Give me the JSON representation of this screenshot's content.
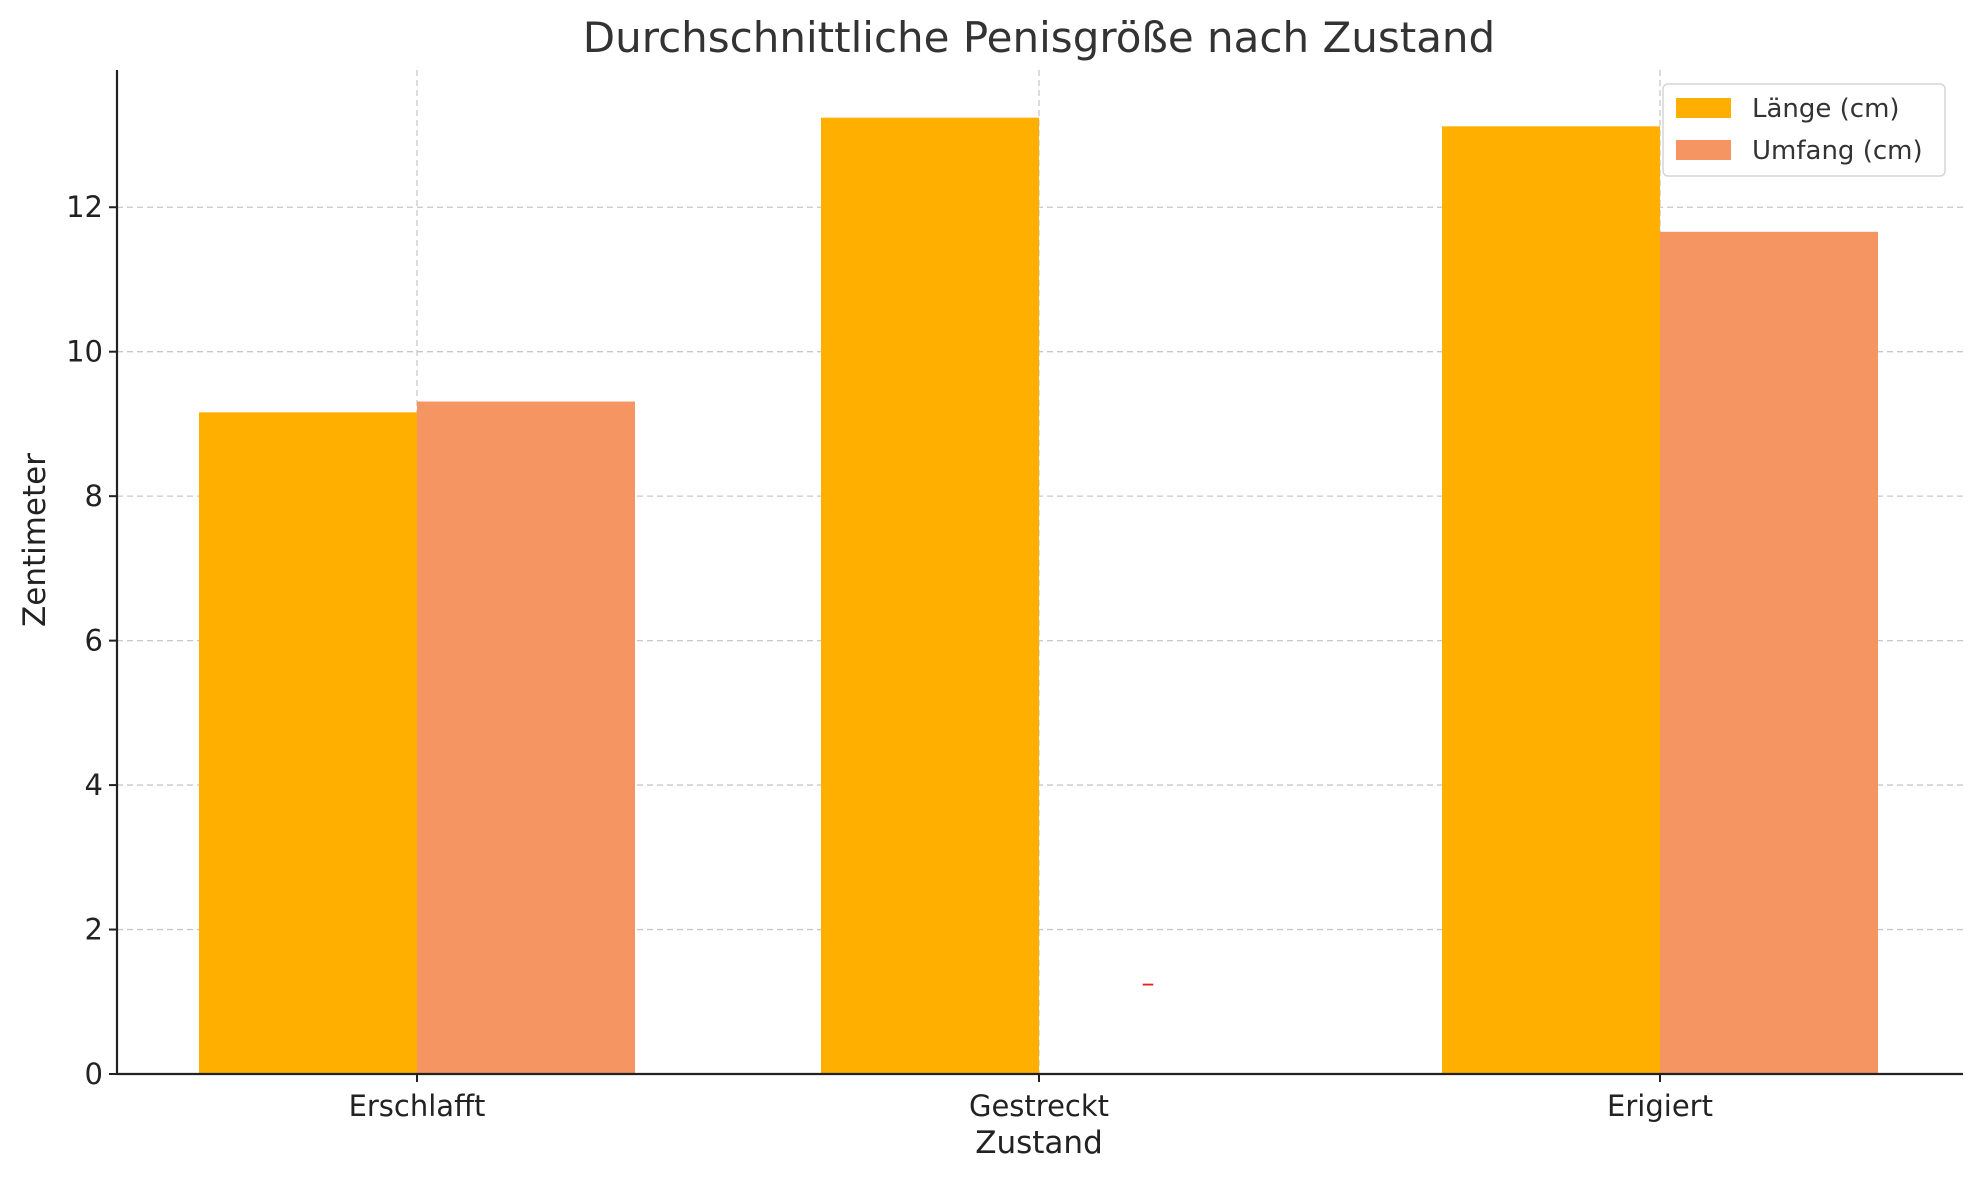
{
  "chart_data": {
    "type": "bar",
    "title": "Durchschnittliche Penisgröße nach Zustand",
    "xlabel": "Zustand",
    "ylabel": "Zentimeter",
    "categories": [
      "Erschlafft",
      "Gestreckt",
      "Erigiert"
    ],
    "series": [
      {
        "name": "Länge (cm)",
        "color": "#FFAF00",
        "values": [
          9.16,
          13.24,
          13.12
        ]
      },
      {
        "name": "Umfang (cm)",
        "color": "#F59562",
        "values": [
          9.31,
          null,
          11.66
        ]
      }
    ],
    "ylim": [
      0,
      13.9
    ],
    "yticks": [
      0,
      2,
      4,
      6,
      8,
      10,
      12
    ],
    "grid": true,
    "legend": "top-right",
    "annotation": {
      "text": "–",
      "color": "#E0201B",
      "x_category": "Gestreckt",
      "y": 1.25
    }
  }
}
